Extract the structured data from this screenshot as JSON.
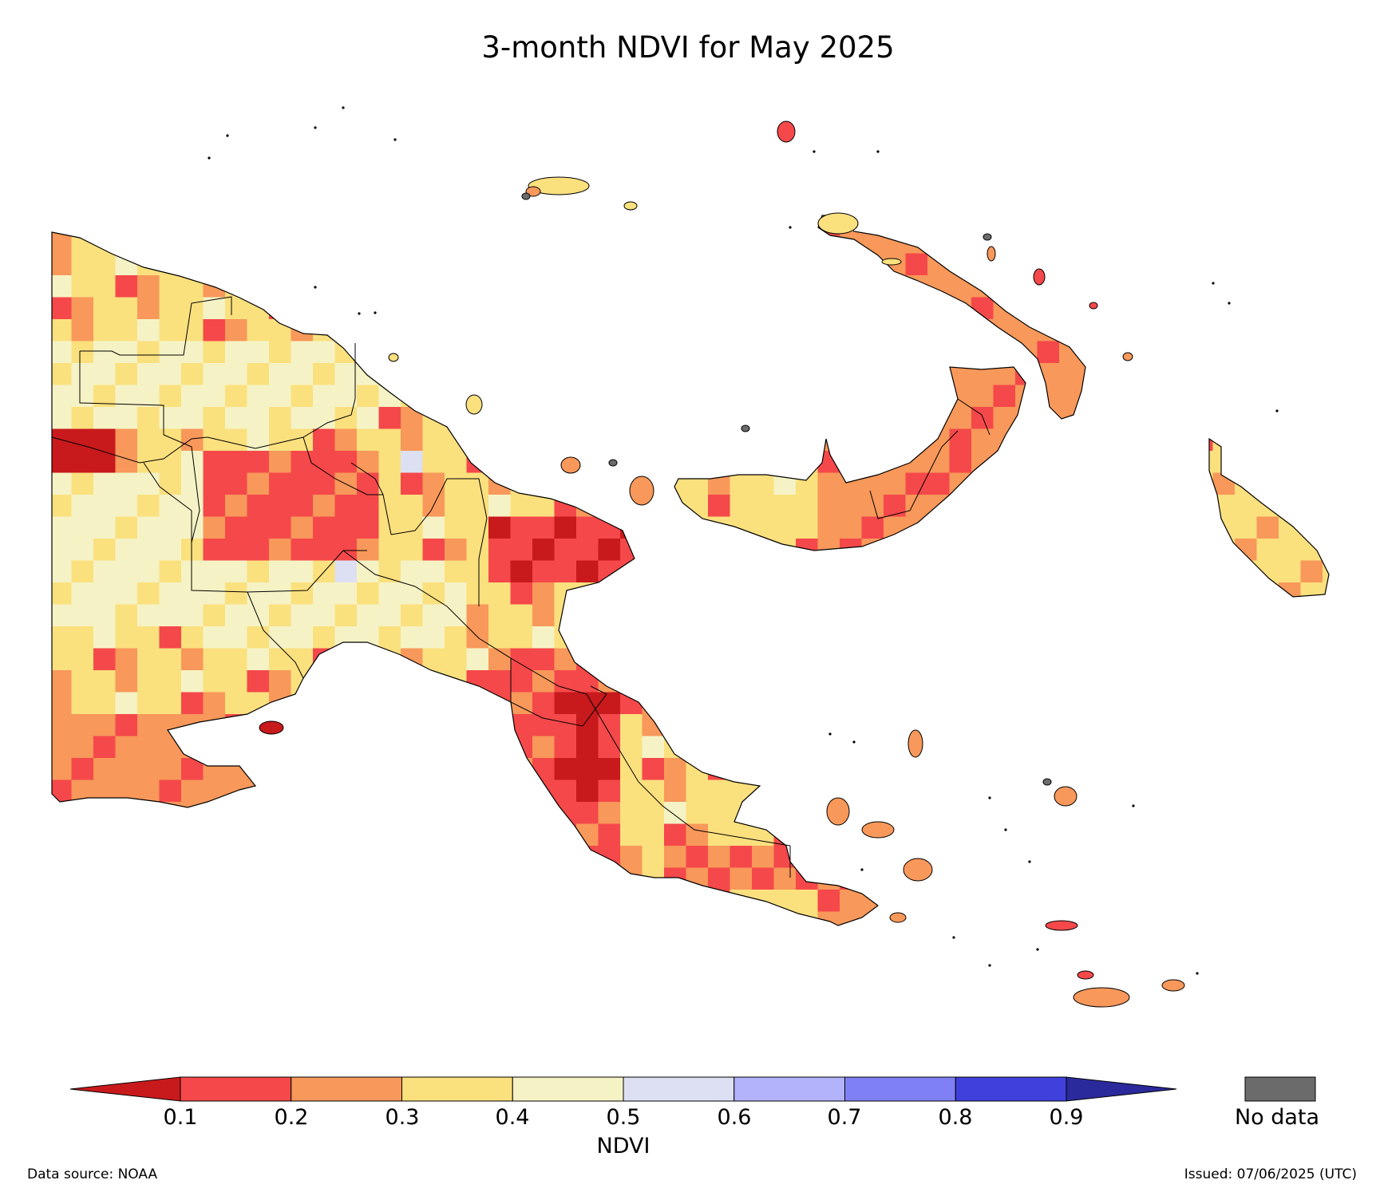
{
  "title": "3-month NDVI for May 2025",
  "colorbar": {
    "label": "NDVI",
    "ticks": [
      "0.1",
      "0.2",
      "0.3",
      "0.4",
      "0.5",
      "0.6",
      "0.7",
      "0.8",
      "0.9"
    ],
    "bins": [
      {
        "range": "<0.1",
        "color": "#c81a1c"
      },
      {
        "range": "0.1-0.2",
        "color": "#f5484a"
      },
      {
        "range": "0.2-0.3",
        "color": "#f8985a"
      },
      {
        "range": "0.3-0.4",
        "color": "#fbe07e"
      },
      {
        "range": "0.4-0.5",
        "color": "#f5f3c5"
      },
      {
        "range": "0.5-0.6",
        "color": "#dddff2"
      },
      {
        "range": "0.6-0.7",
        "color": "#b3b3fb"
      },
      {
        "range": "0.7-0.8",
        "color": "#8080f5"
      },
      {
        "range": "0.8-0.9",
        "color": "#4040dd"
      },
      {
        "range": ">0.9",
        "color": "#2a2a9c"
      }
    ],
    "no_data": {
      "label": "No data",
      "color": "#6b6b6b"
    }
  },
  "footer": {
    "source": "Data source: NOAA",
    "issued": "Issued: 07/06/2025 (UTC)"
  }
}
